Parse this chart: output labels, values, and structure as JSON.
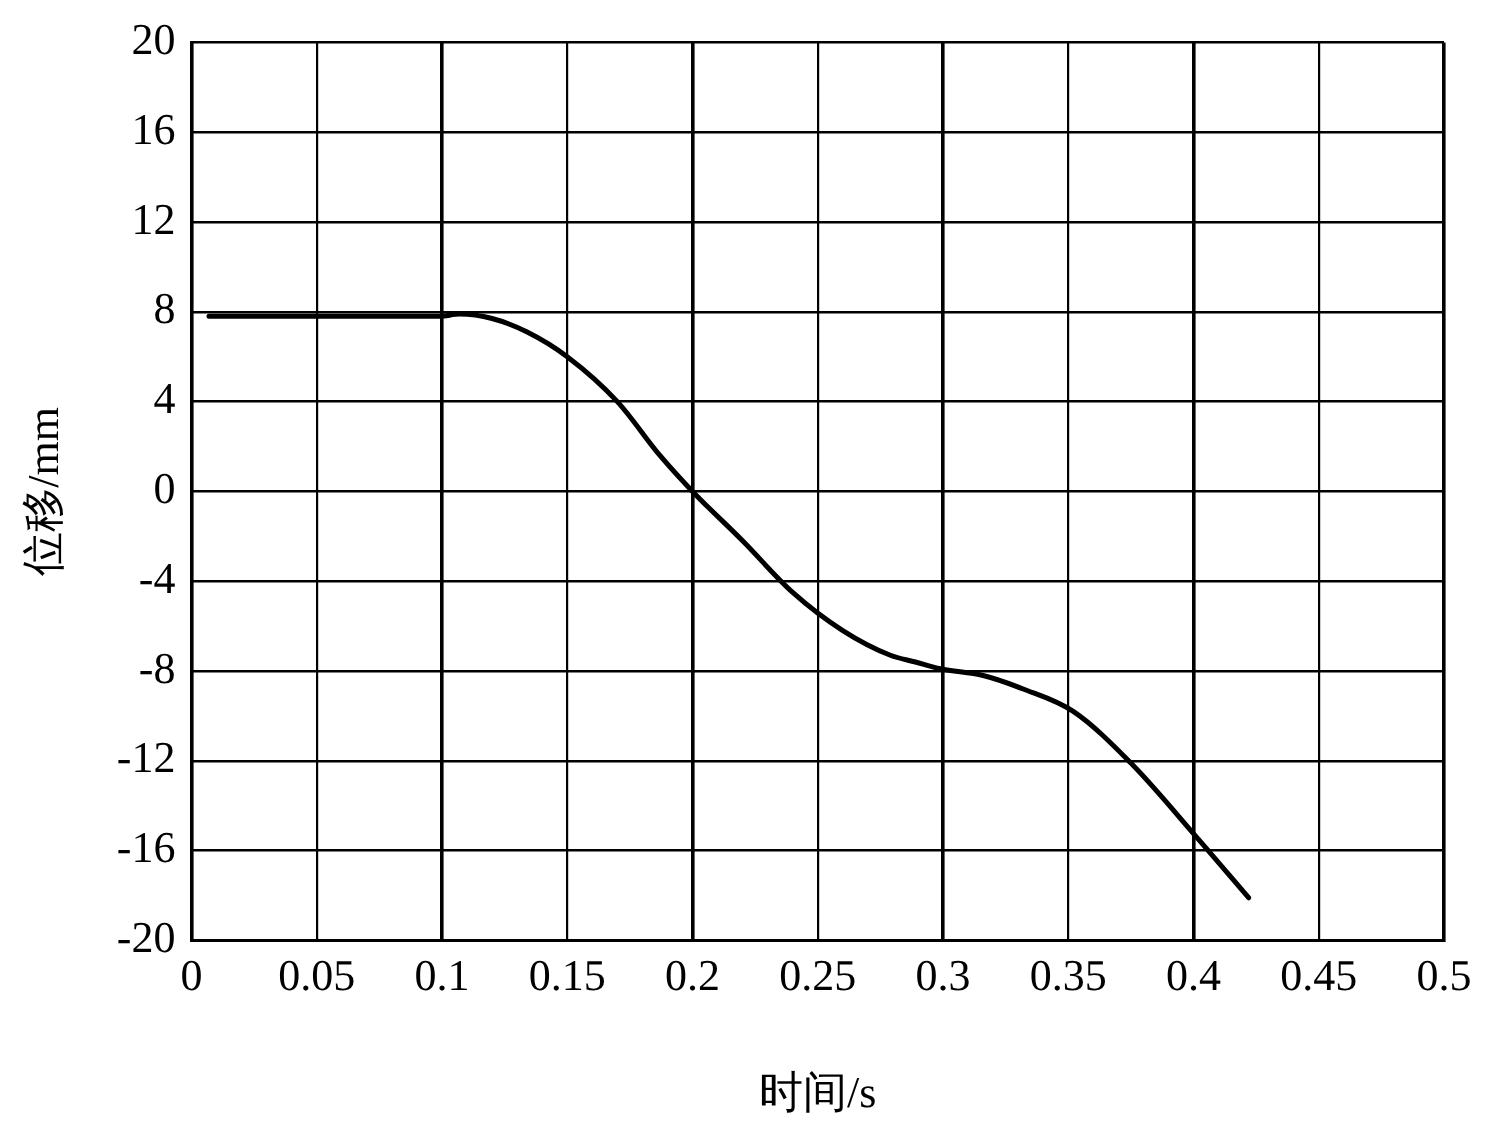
{
  "chart_data": {
    "type": "line",
    "xlabel": "时间/s",
    "ylabel": "位移/mm",
    "series": [
      {
        "color": "#000000",
        "x": [
          0.007,
          0.099,
          0.107,
          0.12,
          0.134,
          0.15,
          0.17,
          0.187,
          0.2,
          0.22,
          0.24,
          0.26,
          0.279,
          0.289,
          0.299,
          0.316,
          0.332,
          0.352,
          0.375,
          0.402,
          0.422
        ],
        "values": [
          7.8,
          7.8,
          7.9,
          7.7,
          7.1,
          6.0,
          4.0,
          1.6,
          0,
          -2.2,
          -4.5,
          -6.2,
          -7.3,
          -7.6,
          -7.9,
          -8.2,
          -8.8,
          -9.8,
          -12.1,
          -15.5,
          -18.1
        ]
      }
    ],
    "xlim": [
      0,
      0.5
    ],
    "xticks": [
      0,
      0.05,
      0.1,
      0.15,
      0.2,
      0.25,
      0.3,
      0.35,
      0.4,
      0.45,
      0.5
    ],
    "ylim": [
      -20,
      20
    ],
    "yticks": [
      -20,
      -16,
      -12,
      -8,
      -4,
      0,
      4,
      8,
      12,
      16,
      20
    ],
    "grid": true,
    "legend": false,
    "marker": "none",
    "line_style": "solid"
  }
}
